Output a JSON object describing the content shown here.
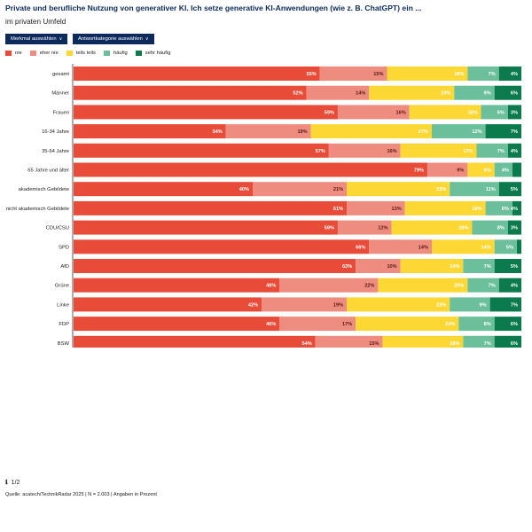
{
  "header": {
    "title": "Private und berufliche Nutzung von generativer KI. Ich setze generative KI-Anwendungen (wie z. B. ChatGPT) ein ...",
    "subtitle": "im privaten Umfeld"
  },
  "controls": {
    "merkmal_label": "Merkmal auswählen",
    "antwort_label": "Antwortkategorie auswählen",
    "chevron_icon": "chevron-down-icon"
  },
  "colors": {
    "nie": "#e84c38",
    "eher_nie": "#ef8c80",
    "teils_teils": "#fdd835",
    "haeufig": "#6cbf9b",
    "sehr_haeufig": "#0b7a4d",
    "button_bg": "#0d2a5c"
  },
  "chart_data": {
    "type": "bar",
    "orientation": "horizontal-stacked",
    "title": "Private und berufliche Nutzung von generativer KI. Ich setze generative KI-Anwendungen (wie z. B. ChatGPT) ein ...",
    "subtitle": "im privaten Umfeld",
    "xlabel": "",
    "ylabel": "",
    "xlim": [
      0,
      100
    ],
    "unit": "%",
    "legend_position": "top-left",
    "grid": false,
    "categories": [
      "gesamt",
      "Männer",
      "Frauen",
      "16-34 Jahre",
      "35-64 Jahre",
      "65 Jahre und älter",
      "akademisch Gebildete",
      "nicht akademisch Gebildete",
      "CDU/CSU",
      "SPD",
      "AfD",
      "Grüne",
      "Linke",
      "FDP",
      "BSW"
    ],
    "series": [
      {
        "name": "nie",
        "key": "nie",
        "values": [
          55,
          52,
          59,
          34,
          57,
          79,
          40,
          61,
          59,
          66,
          63,
          46,
          42,
          46,
          54
        ]
      },
      {
        "name": "eher nie",
        "key": "eher_nie",
        "values": [
          15,
          14,
          16,
          19,
          16,
          9,
          21,
          13,
          12,
          14,
          10,
          22,
          19,
          17,
          15
        ]
      },
      {
        "name": "teils teils",
        "key": "teils_teils",
        "values": [
          18,
          19,
          16,
          27,
          17,
          6,
          23,
          18,
          18,
          14,
          14,
          20,
          23,
          23,
          18
        ]
      },
      {
        "name": "häufig",
        "key": "haeufig",
        "values": [
          7,
          9,
          6,
          12,
          7,
          4,
          11,
          6,
          8,
          5,
          7,
          7,
          9,
          8,
          7
        ]
      },
      {
        "name": "sehr häufig",
        "key": "sehr_haeufig",
        "values": [
          4,
          6,
          3,
          7,
          4,
          2,
          5,
          4,
          3,
          1,
          5,
          4,
          7,
          6,
          6
        ]
      }
    ],
    "label_threshold": 3
  },
  "footer": {
    "info_icon": "info-icon",
    "page": "1/2",
    "source": "Quelle: acatech/TechnikRadar 2025 | N = 2.003 | Angaben in Prozent"
  }
}
